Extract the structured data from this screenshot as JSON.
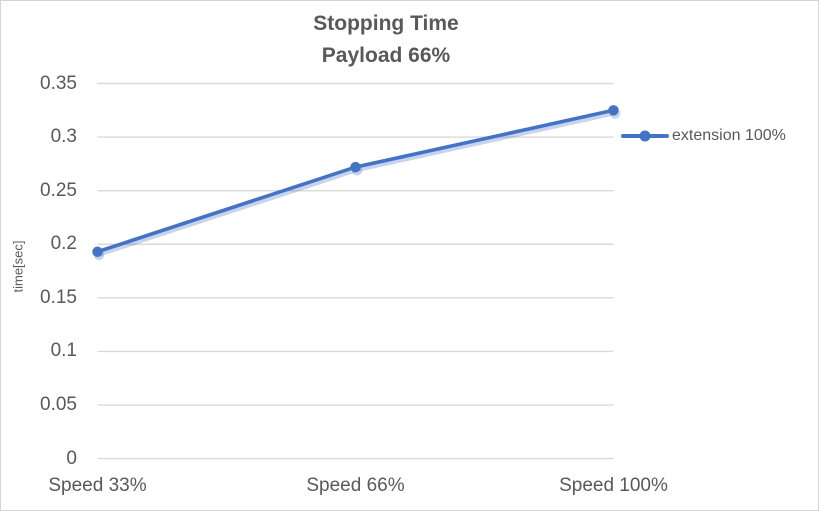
{
  "window": {
    "background": "#ffffff",
    "border_color": "#d5d5d5"
  },
  "chart_data": {
    "type": "line",
    "title": "Stopping Time",
    "subtitle": "Payload 66%",
    "ylabel": "time[sec]",
    "xlabel": "",
    "categories": [
      "Speed 33%",
      "Speed 66%",
      "Speed 100%"
    ],
    "series": [
      {
        "name": "extension 100%",
        "values": [
          0.193,
          0.272,
          0.325
        ],
        "color": "#4472c4",
        "marker": "circle",
        "shadow_color": "rgba(68,114,196,0.30)"
      }
    ],
    "ylim": [
      0,
      0.35
    ],
    "ytick_step": 0.05,
    "ytick_labels": [
      "0.35",
      "0.3",
      "0.25",
      "0.2",
      "0.15",
      "0.1",
      "0.05",
      "0"
    ],
    "grid": true,
    "gridline_color": "#d9d9d9",
    "text_color": "#595959",
    "legend_position": "right"
  }
}
